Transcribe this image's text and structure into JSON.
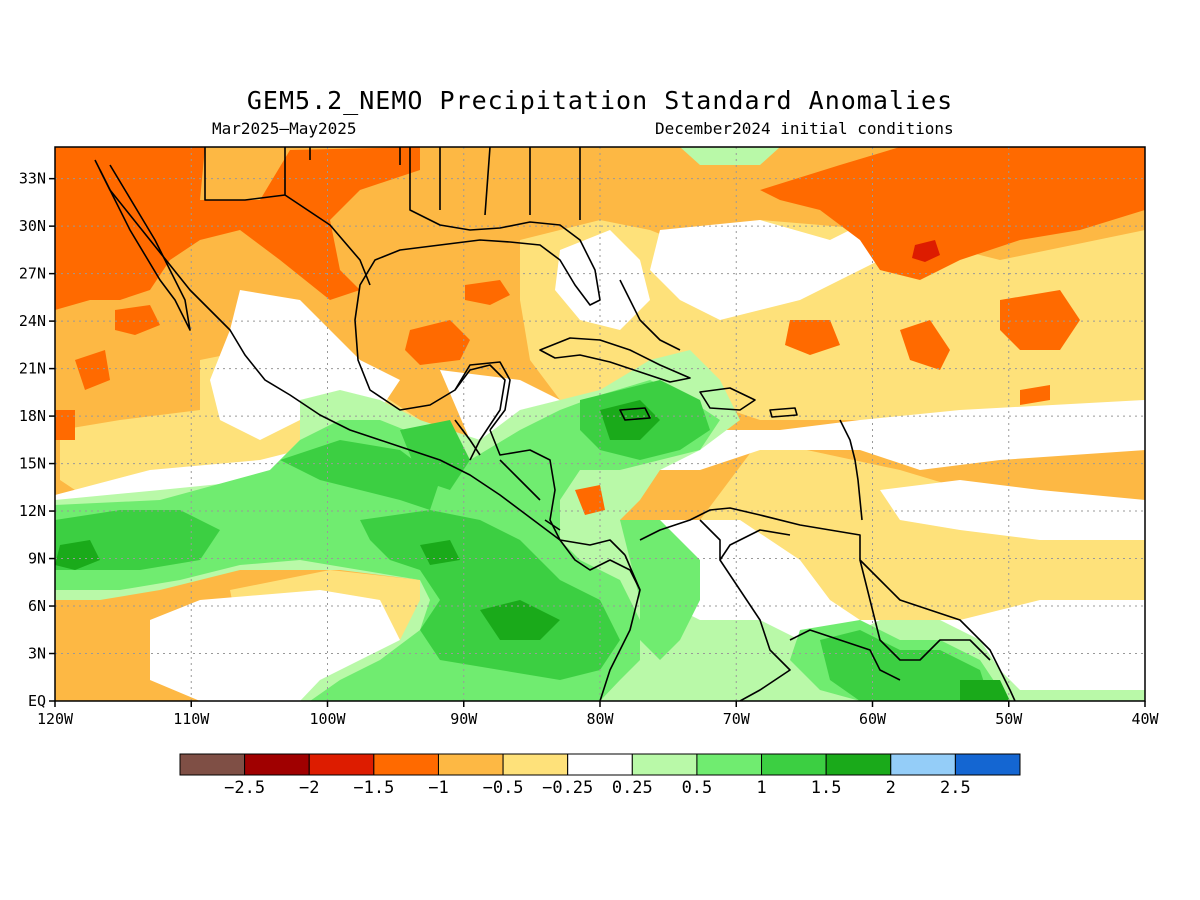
{
  "title": "GEM5.2_NEMO Precipitation Standard Anomalies",
  "subtitle_left": "Mar2025–May2025",
  "subtitle_right": "December2024 initial conditions",
  "map": {
    "lon_range": [
      -120,
      -40
    ],
    "lat_range": [
      0,
      35
    ],
    "lat_ticks": [
      {
        "value": 33,
        "label": "33N"
      },
      {
        "value": 30,
        "label": "30N"
      },
      {
        "value": 27,
        "label": "27N"
      },
      {
        "value": 24,
        "label": "24N"
      },
      {
        "value": 21,
        "label": "21N"
      },
      {
        "value": 18,
        "label": "18N"
      },
      {
        "value": 15,
        "label": "15N"
      },
      {
        "value": 12,
        "label": "12N"
      },
      {
        "value": 9,
        "label": "9N"
      },
      {
        "value": 6,
        "label": "6N"
      },
      {
        "value": 3,
        "label": "3N"
      },
      {
        "value": 0,
        "label": "EQ"
      }
    ],
    "lon_ticks": [
      {
        "value": -120,
        "label": "120W"
      },
      {
        "value": -110,
        "label": "110W"
      },
      {
        "value": -100,
        "label": "100W"
      },
      {
        "value": -90,
        "label": "90W"
      },
      {
        "value": -80,
        "label": "80W"
      },
      {
        "value": -70,
        "label": "70W"
      },
      {
        "value": -60,
        "label": "60W"
      },
      {
        "value": -50,
        "label": "50W"
      },
      {
        "value": -40,
        "label": "40W"
      }
    ]
  },
  "colorbar": {
    "colors": [
      "#7f4f45",
      "#a00000",
      "#dd1c00",
      "#ff6a00",
      "#fdb844",
      "#fee17a",
      "#ffffff",
      "#b9f9a8",
      "#70ec70",
      "#3ccf42",
      "#1aaa1a",
      "#94cdf8",
      "#1466d2"
    ],
    "labels": [
      "−2.5",
      "−2",
      "−1.5",
      "−1",
      "−0.5",
      "−0.25",
      "0.25",
      "0.5",
      "1",
      "1.5",
      "2",
      "2.5"
    ]
  },
  "palette": {
    "orange": "#fdb844",
    "dark_orange": "#ff6a00",
    "red": "#dd1c00",
    "yellow": "#fee17a",
    "light_green": "#b9f9a8",
    "green": "#70ec70",
    "mid_green": "#3ccf42",
    "dark_green": "#1aaa1a"
  }
}
